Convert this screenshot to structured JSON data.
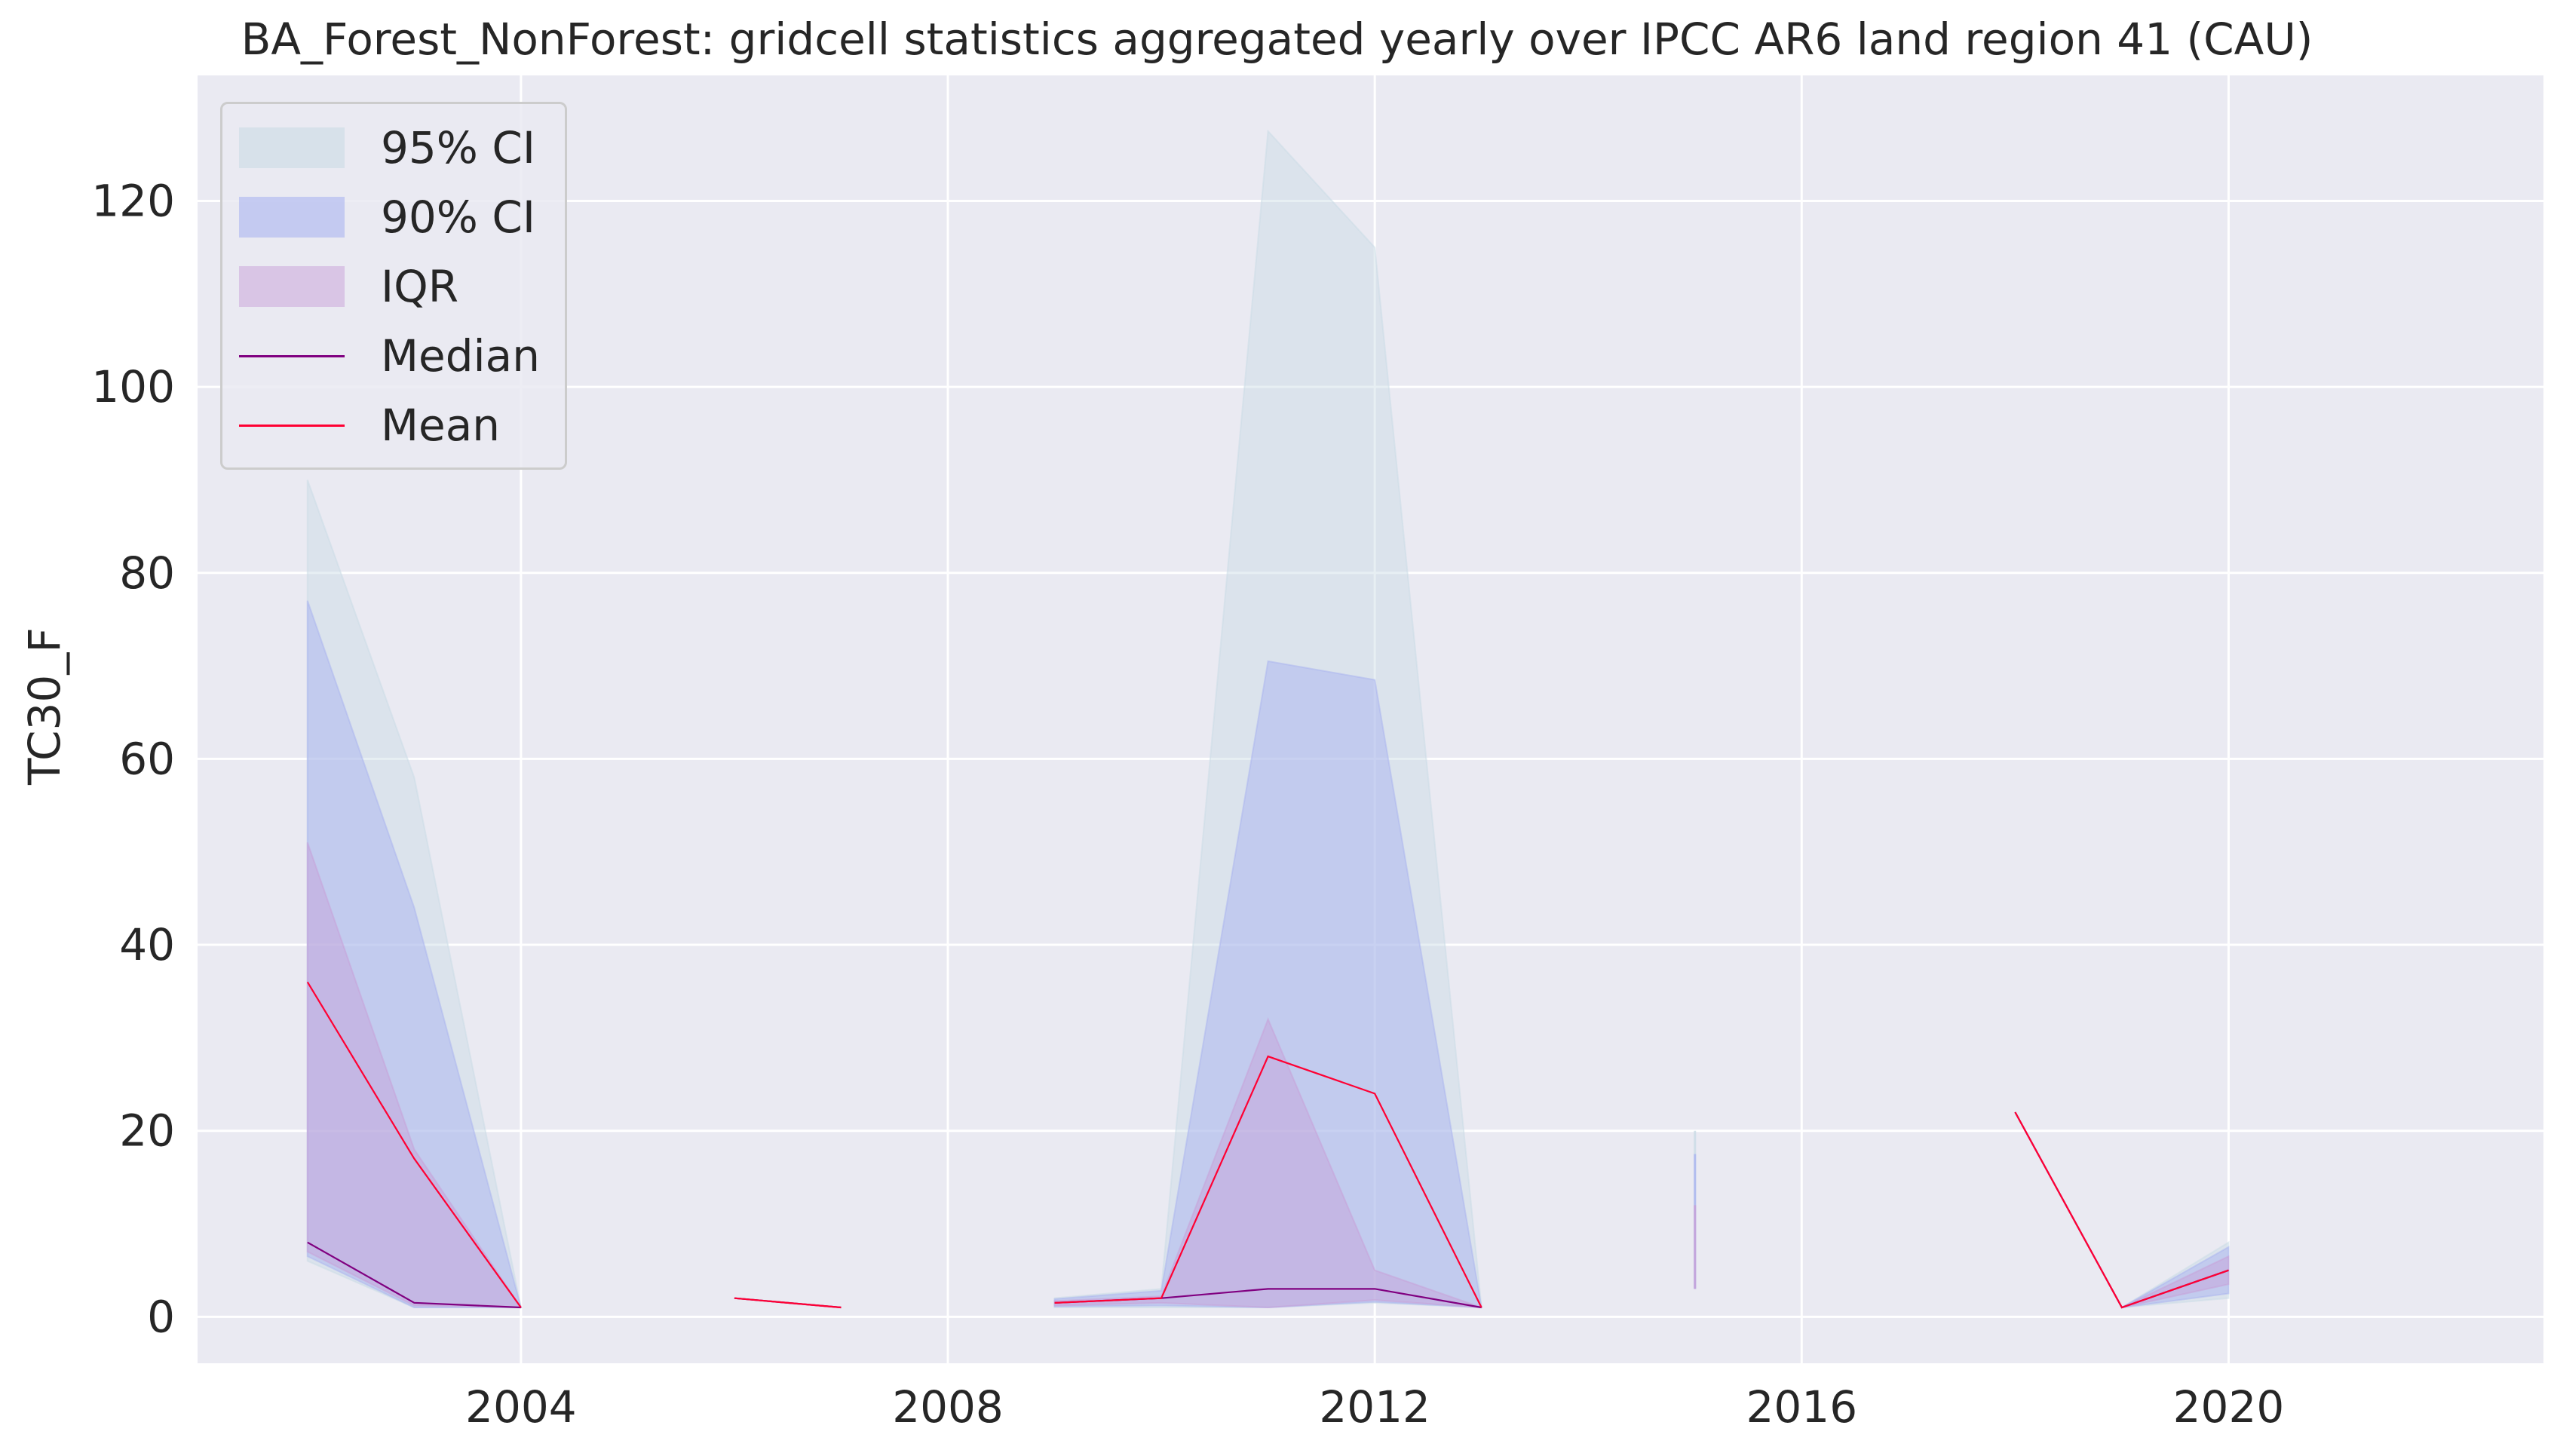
{
  "colors": {
    "background": "#eaeaf2",
    "grid": "#ffffff",
    "ci95": "#c9dbe5",
    "ci90": "#aab4f0",
    "iqr": "#c8a0d8",
    "median": "#800080",
    "mean": "#ff0033"
  },
  "chart_data": {
    "type": "area",
    "title": "BA_Forest_NonForest: gridcell statistics aggregated yearly over IPCC AR6 land region 41 (CAU)",
    "xlabel": "",
    "ylabel": "TC30_F",
    "xlim": [
      2000.97,
      2022.95
    ],
    "ylim": [
      -5,
      133.5
    ],
    "xticks": [
      2004,
      2008,
      2012,
      2016,
      2020
    ],
    "yticks": [
      0,
      20,
      40,
      60,
      80,
      100,
      120
    ],
    "grid": true,
    "legend_position": "upper-left",
    "legend": [
      "95% CI",
      "90% CI",
      "IQR",
      "Median",
      "Mean"
    ],
    "segments": [
      {
        "x": [
          2002,
          2003,
          2004
        ],
        "ci95_low": [
          6,
          1,
          1
        ],
        "ci95_high": [
          90,
          58,
          1
        ],
        "ci90_low": [
          6.5,
          1,
          1
        ],
        "ci90_high": [
          77,
          44,
          1
        ],
        "iqr_low": [
          7,
          1.2,
          1
        ],
        "iqr_high": [
          51,
          18,
          1
        ],
        "median": [
          8,
          1.5,
          1
        ],
        "mean": [
          36,
          17,
          1
        ]
      },
      {
        "x": [
          2006,
          2007
        ],
        "ci95_low": [
          2,
          1
        ],
        "ci95_high": [
          2,
          1
        ],
        "ci90_low": [
          2,
          1
        ],
        "ci90_high": [
          2,
          1
        ],
        "iqr_low": [
          2,
          1
        ],
        "iqr_high": [
          2,
          1
        ],
        "median": [
          2,
          1
        ],
        "mean": [
          2,
          1
        ]
      },
      {
        "x": [
          2009,
          2010,
          2011,
          2012,
          2013
        ],
        "ci95_low": [
          1,
          1,
          1,
          1.5,
          1
        ],
        "ci95_high": [
          2,
          3,
          127.5,
          115,
          1
        ],
        "ci90_low": [
          1.1,
          1.2,
          1,
          1.6,
          1
        ],
        "ci90_high": [
          1.9,
          2.8,
          70.5,
          68.5,
          1
        ],
        "iqr_low": [
          1.2,
          1.5,
          1,
          1.8,
          1
        ],
        "iqr_high": [
          1.7,
          2.2,
          32,
          5,
          1
        ],
        "median": [
          1.5,
          2,
          3,
          3,
          1
        ],
        "mean": [
          1.5,
          2,
          28,
          24,
          1
        ]
      },
      {
        "x": [
          2015
        ],
        "ci95_low": [
          3
        ],
        "ci95_high": [
          20
        ],
        "ci90_low": [
          3
        ],
        "ci90_high": [
          17.5
        ],
        "iqr_low": [
          3
        ],
        "iqr_high": [
          12
        ],
        "median": [
          3
        ],
        "mean": [
          3
        ]
      },
      {
        "x": [
          2018,
          2019,
          2020
        ],
        "ci95_low": [
          22,
          1,
          2
        ],
        "ci95_high": [
          22,
          1,
          8
        ],
        "ci90_low": [
          22,
          1,
          2.5
        ],
        "ci90_high": [
          22,
          1,
          7.5
        ],
        "iqr_low": [
          22,
          1,
          3.5
        ],
        "iqr_high": [
          22,
          1,
          6.5
        ],
        "median": [
          22,
          1,
          5
        ],
        "mean": [
          22,
          1,
          5
        ]
      }
    ]
  }
}
